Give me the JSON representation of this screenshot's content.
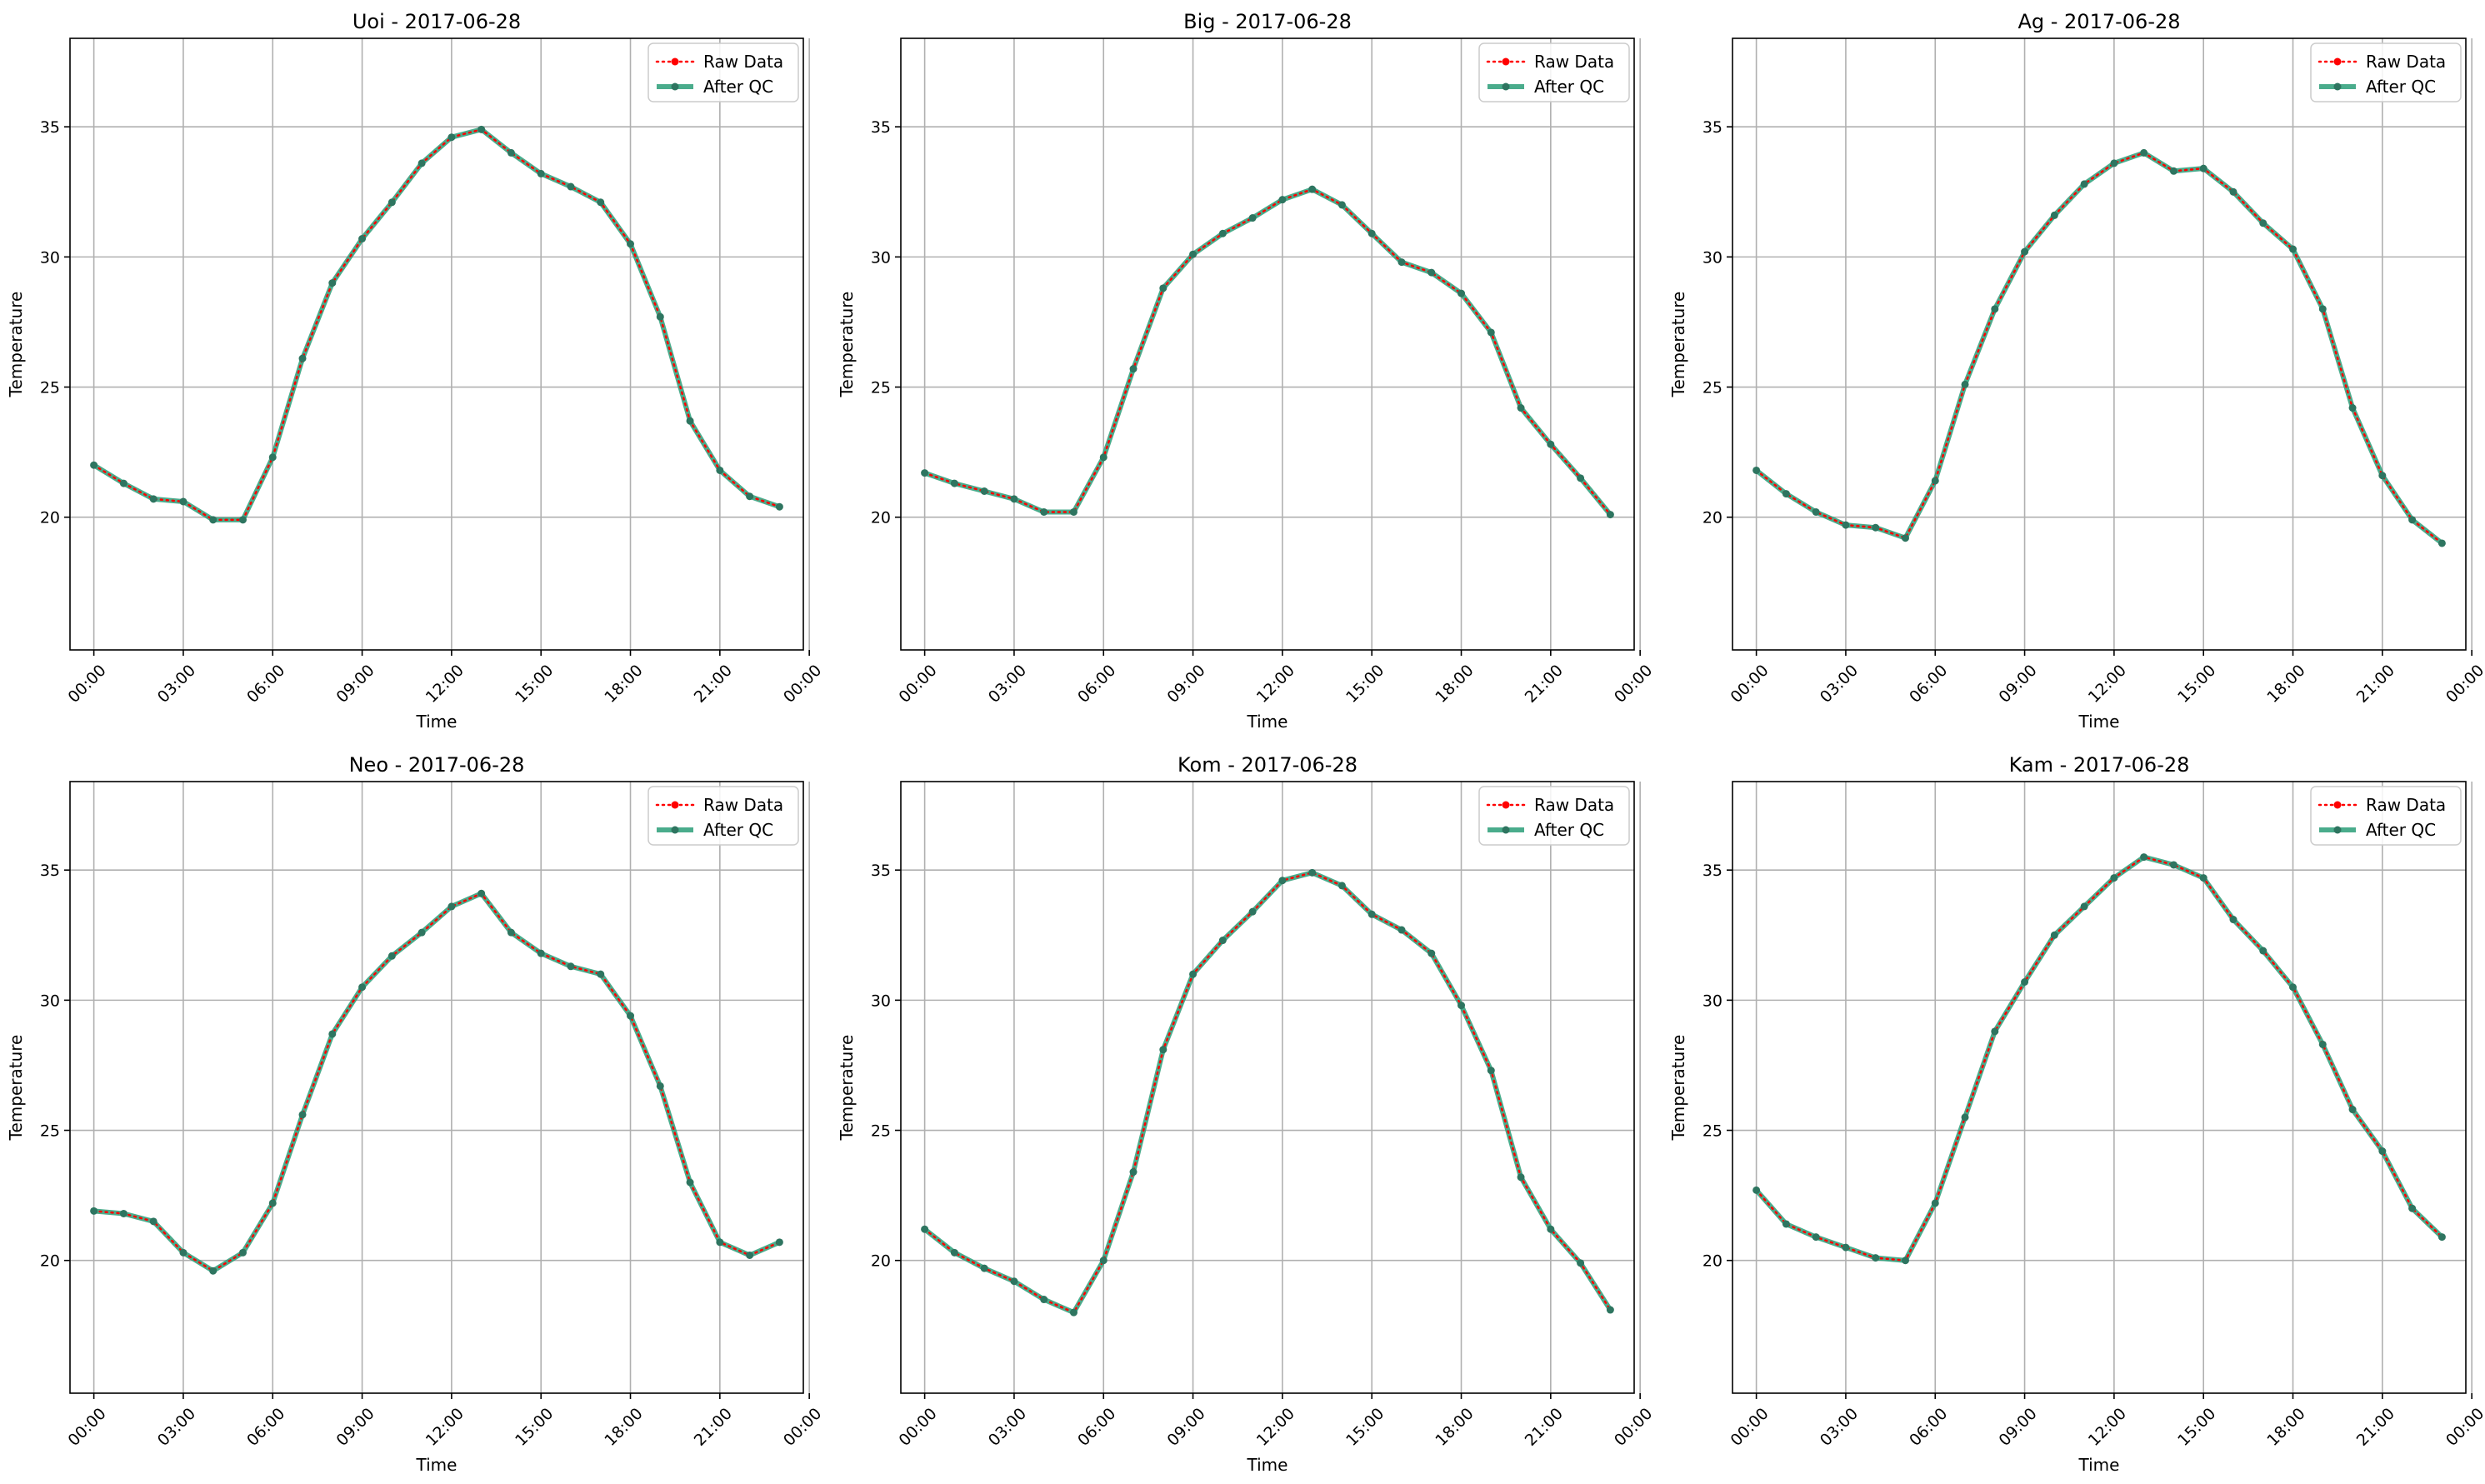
{
  "figure": {
    "background": "#ffffff",
    "grid": true,
    "legend_placement": "top-right",
    "colors": {
      "raw": "#ff0000",
      "qc": "#2a9d78",
      "qc_marker": "#2e7560",
      "grid": "#b0b0b0",
      "axes": "#000000"
    }
  },
  "chart_data": [
    {
      "type": "line",
      "title": "Uoi - 2017-06-28",
      "xlabel": "Time",
      "ylabel": "Temperature",
      "x_unit": "hour of day",
      "xlim": [
        -0.8,
        23.8
      ],
      "ylim": [
        14.9,
        38.4
      ],
      "xticks": [
        0,
        3,
        6,
        9,
        12,
        15,
        18,
        21,
        24
      ],
      "xtick_labels": [
        "00:00",
        "03:00",
        "06:00",
        "09:00",
        "12:00",
        "15:00",
        "18:00",
        "21:00",
        "00:00"
      ],
      "yticks": [
        20,
        25,
        30,
        35
      ],
      "ytick_labels": [
        "20",
        "25",
        "30",
        "35"
      ],
      "x": [
        0,
        1,
        2,
        3,
        4,
        5,
        6,
        7,
        8,
        9,
        10,
        11,
        12,
        13,
        14,
        15,
        16,
        17,
        18,
        19,
        20,
        21,
        22,
        23
      ],
      "series": [
        {
          "name": "Raw Data",
          "style": "dotted",
          "values": [
            22.0,
            21.3,
            20.7,
            20.6,
            19.9,
            19.9,
            22.3,
            26.1,
            29.0,
            30.7,
            32.1,
            33.6,
            34.6,
            34.9,
            34.0,
            33.2,
            32.7,
            32.1,
            30.5,
            27.7,
            23.7,
            21.8,
            20.8,
            20.4
          ]
        },
        {
          "name": "After QC",
          "style": "solid",
          "values": [
            22.0,
            21.3,
            20.7,
            20.6,
            19.9,
            19.9,
            22.3,
            26.1,
            29.0,
            30.7,
            32.1,
            33.6,
            34.6,
            34.9,
            34.0,
            33.2,
            32.7,
            32.1,
            30.5,
            27.7,
            23.7,
            21.8,
            20.8,
            20.4
          ]
        }
      ]
    },
    {
      "type": "line",
      "title": "Big - 2017-06-28",
      "xlabel": "Time",
      "ylabel": "Temperature",
      "x_unit": "hour of day",
      "xlim": [
        -0.8,
        23.8
      ],
      "ylim": [
        14.9,
        38.4
      ],
      "xticks": [
        0,
        3,
        6,
        9,
        12,
        15,
        18,
        21,
        24
      ],
      "xtick_labels": [
        "00:00",
        "03:00",
        "06:00",
        "09:00",
        "12:00",
        "15:00",
        "18:00",
        "21:00",
        "00:00"
      ],
      "yticks": [
        20,
        25,
        30,
        35
      ],
      "ytick_labels": [
        "20",
        "25",
        "30",
        "35"
      ],
      "x": [
        0,
        1,
        2,
        3,
        4,
        5,
        6,
        7,
        8,
        9,
        10,
        11,
        12,
        13,
        14,
        15,
        16,
        17,
        18,
        19,
        20,
        21,
        22,
        23
      ],
      "series": [
        {
          "name": "Raw Data",
          "style": "dotted",
          "values": [
            21.7,
            21.3,
            21.0,
            20.7,
            20.2,
            20.2,
            22.3,
            25.7,
            28.8,
            30.1,
            30.9,
            31.5,
            32.2,
            32.6,
            32.0,
            30.9,
            29.8,
            29.4,
            28.6,
            27.1,
            24.2,
            22.8,
            21.5,
            20.1
          ]
        },
        {
          "name": "After QC",
          "style": "solid",
          "values": [
            21.7,
            21.3,
            21.0,
            20.7,
            20.2,
            20.2,
            22.3,
            25.7,
            28.8,
            30.1,
            30.9,
            31.5,
            32.2,
            32.6,
            32.0,
            30.9,
            29.8,
            29.4,
            28.6,
            27.1,
            24.2,
            22.8,
            21.5,
            20.1
          ]
        }
      ]
    },
    {
      "type": "line",
      "title": "Ag - 2017-06-28",
      "xlabel": "Time",
      "ylabel": "Temperature",
      "x_unit": "hour of day",
      "xlim": [
        -0.8,
        23.8
      ],
      "ylim": [
        14.9,
        38.4
      ],
      "xticks": [
        0,
        3,
        6,
        9,
        12,
        15,
        18,
        21,
        24
      ],
      "xtick_labels": [
        "00:00",
        "03:00",
        "06:00",
        "09:00",
        "12:00",
        "15:00",
        "18:00",
        "21:00",
        "00:00"
      ],
      "yticks": [
        20,
        25,
        30,
        35
      ],
      "ytick_labels": [
        "20",
        "25",
        "30",
        "35"
      ],
      "x": [
        0,
        1,
        2,
        3,
        4,
        5,
        6,
        7,
        8,
        9,
        10,
        11,
        12,
        13,
        14,
        15,
        16,
        17,
        18,
        19,
        20,
        21,
        22,
        23
      ],
      "series": [
        {
          "name": "Raw Data",
          "style": "dotted",
          "values": [
            21.8,
            20.9,
            20.2,
            19.7,
            19.6,
            19.2,
            21.4,
            25.1,
            28.0,
            30.2,
            31.6,
            32.8,
            33.6,
            34.0,
            33.3,
            33.4,
            32.5,
            31.3,
            30.3,
            28.0,
            24.2,
            21.6,
            19.9,
            19.0
          ]
        },
        {
          "name": "After QC",
          "style": "solid",
          "values": [
            21.8,
            20.9,
            20.2,
            19.7,
            19.6,
            19.2,
            21.4,
            25.1,
            28.0,
            30.2,
            31.6,
            32.8,
            33.6,
            34.0,
            33.3,
            33.4,
            32.5,
            31.3,
            30.3,
            28.0,
            24.2,
            21.6,
            19.9,
            19.0
          ]
        }
      ]
    },
    {
      "type": "line",
      "title": "Neo - 2017-06-28",
      "xlabel": "Time",
      "ylabel": "Temperature",
      "x_unit": "hour of day",
      "xlim": [
        -0.8,
        23.8
      ],
      "ylim": [
        14.9,
        38.4
      ],
      "xticks": [
        0,
        3,
        6,
        9,
        12,
        15,
        18,
        21,
        24
      ],
      "xtick_labels": [
        "00:00",
        "03:00",
        "06:00",
        "09:00",
        "12:00",
        "15:00",
        "18:00",
        "21:00",
        "00:00"
      ],
      "yticks": [
        20,
        25,
        30,
        35
      ],
      "ytick_labels": [
        "20",
        "25",
        "30",
        "35"
      ],
      "x": [
        0,
        1,
        2,
        3,
        4,
        5,
        6,
        7,
        8,
        9,
        10,
        11,
        12,
        13,
        14,
        15,
        16,
        17,
        18,
        19,
        20,
        21,
        22,
        23
      ],
      "series": [
        {
          "name": "Raw Data",
          "style": "dotted",
          "values": [
            21.9,
            21.8,
            21.5,
            20.3,
            19.6,
            20.3,
            22.2,
            25.6,
            28.7,
            30.5,
            31.7,
            32.6,
            33.6,
            34.1,
            32.6,
            31.8,
            31.3,
            31.0,
            29.4,
            26.7,
            23.0,
            20.7,
            20.2,
            20.7
          ]
        },
        {
          "name": "After QC",
          "style": "solid",
          "values": [
            21.9,
            21.8,
            21.5,
            20.3,
            19.6,
            20.3,
            22.2,
            25.6,
            28.7,
            30.5,
            31.7,
            32.6,
            33.6,
            34.1,
            32.6,
            31.8,
            31.3,
            31.0,
            29.4,
            26.7,
            23.0,
            20.7,
            20.2,
            20.7
          ]
        }
      ]
    },
    {
      "type": "line",
      "title": "Kom - 2017-06-28",
      "xlabel": "Time",
      "ylabel": "Temperature",
      "x_unit": "hour of day",
      "xlim": [
        -0.8,
        23.8
      ],
      "ylim": [
        14.9,
        38.4
      ],
      "xticks": [
        0,
        3,
        6,
        9,
        12,
        15,
        18,
        21,
        24
      ],
      "xtick_labels": [
        "00:00",
        "03:00",
        "06:00",
        "09:00",
        "12:00",
        "15:00",
        "18:00",
        "21:00",
        "00:00"
      ],
      "yticks": [
        20,
        25,
        30,
        35
      ],
      "ytick_labels": [
        "20",
        "25",
        "30",
        "35"
      ],
      "x": [
        0,
        1,
        2,
        3,
        4,
        5,
        6,
        7,
        8,
        9,
        10,
        11,
        12,
        13,
        14,
        15,
        16,
        17,
        18,
        19,
        20,
        21,
        22,
        23
      ],
      "series": [
        {
          "name": "Raw Data",
          "style": "dotted",
          "values": [
            21.2,
            20.3,
            19.7,
            19.2,
            18.5,
            18.0,
            20.0,
            23.4,
            28.1,
            31.0,
            32.3,
            33.4,
            34.6,
            34.9,
            34.4,
            33.3,
            32.7,
            31.8,
            29.8,
            27.3,
            23.2,
            21.2,
            19.9,
            18.1
          ]
        },
        {
          "name": "After QC",
          "style": "solid",
          "values": [
            21.2,
            20.3,
            19.7,
            19.2,
            18.5,
            18.0,
            20.0,
            23.4,
            28.1,
            31.0,
            32.3,
            33.4,
            34.6,
            34.9,
            34.4,
            33.3,
            32.7,
            31.8,
            29.8,
            27.3,
            23.2,
            21.2,
            19.9,
            18.1
          ]
        }
      ]
    },
    {
      "type": "line",
      "title": "Kam - 2017-06-28",
      "xlabel": "Time",
      "ylabel": "Temperature",
      "x_unit": "hour of day",
      "xlim": [
        -0.8,
        23.8
      ],
      "ylim": [
        14.9,
        38.4
      ],
      "xticks": [
        0,
        3,
        6,
        9,
        12,
        15,
        18,
        21,
        24
      ],
      "xtick_labels": [
        "00:00",
        "03:00",
        "06:00",
        "09:00",
        "12:00",
        "15:00",
        "18:00",
        "21:00",
        "00:00"
      ],
      "yticks": [
        20,
        25,
        30,
        35
      ],
      "ytick_labels": [
        "20",
        "25",
        "30",
        "35"
      ],
      "x": [
        0,
        1,
        2,
        3,
        4,
        5,
        6,
        7,
        8,
        9,
        10,
        11,
        12,
        13,
        14,
        15,
        16,
        17,
        18,
        19,
        20,
        21,
        22,
        23
      ],
      "series": [
        {
          "name": "Raw Data",
          "style": "dotted",
          "values": [
            22.7,
            21.4,
            20.9,
            20.5,
            20.1,
            20.0,
            22.2,
            25.5,
            28.8,
            30.7,
            32.5,
            33.6,
            34.7,
            35.5,
            35.2,
            34.7,
            33.1,
            31.9,
            30.5,
            28.3,
            25.8,
            24.2,
            22.0,
            20.9
          ]
        },
        {
          "name": "After QC",
          "style": "solid",
          "values": [
            22.7,
            21.4,
            20.9,
            20.5,
            20.1,
            20.0,
            22.2,
            25.5,
            28.8,
            30.7,
            32.5,
            33.6,
            34.7,
            35.5,
            35.2,
            34.7,
            33.1,
            31.9,
            30.5,
            28.3,
            25.8,
            24.2,
            22.0,
            20.9
          ]
        }
      ]
    }
  ]
}
